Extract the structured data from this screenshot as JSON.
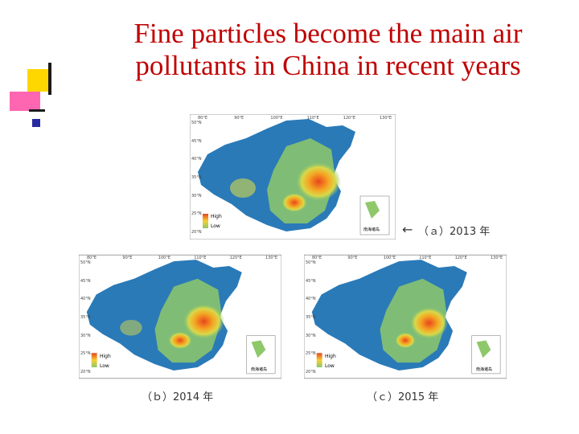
{
  "slide": {
    "title_line1": "Fine particles become the main air",
    "title_line2": "pollutants in China in recent years"
  },
  "maps": [
    {
      "id": "a",
      "caption": "（ａ）2013 年",
      "legend_high": "High",
      "legend_low": "Low",
      "lon_ticks": [
        "80°E",
        "90°E",
        "100°E",
        "110°E",
        "120°E",
        "130°E"
      ],
      "lat_ticks": [
        "50°N",
        "45°N",
        "40°N",
        "35°N",
        "30°N",
        "25°N",
        "20°N"
      ],
      "inset_label": "南海诸岛"
    },
    {
      "id": "b",
      "caption": "（ｂ）2014 年",
      "legend_high": "High",
      "legend_low": "Low",
      "lon_ticks": [
        "80°E",
        "90°E",
        "100°E",
        "110°E",
        "120°E",
        "130°E"
      ],
      "lat_ticks": [
        "50°N",
        "45°N",
        "40°N",
        "35°N",
        "30°N",
        "25°N",
        "20°N"
      ],
      "inset_label": "南海诸岛"
    },
    {
      "id": "c",
      "caption": "（ｃ）2015 年",
      "legend_high": "High",
      "legend_low": "Low",
      "lon_ticks": [
        "80°E",
        "90°E",
        "100°E",
        "110°E",
        "120°E",
        "130°E"
      ],
      "lat_ticks": [
        "50°N",
        "45°N",
        "40°N",
        "35°N",
        "30°N",
        "25°N",
        "20°N"
      ],
      "inset_label": "南海诸岛"
    }
  ],
  "colors": {
    "title": "#c00000",
    "deco_yellow": "#ffd700",
    "deco_pink": "#ff66b2",
    "deco_blue": "#2a2aa0",
    "map_low": "#2a7ab8",
    "map_mid": "#8ec86a",
    "map_high": "#e8451c"
  }
}
